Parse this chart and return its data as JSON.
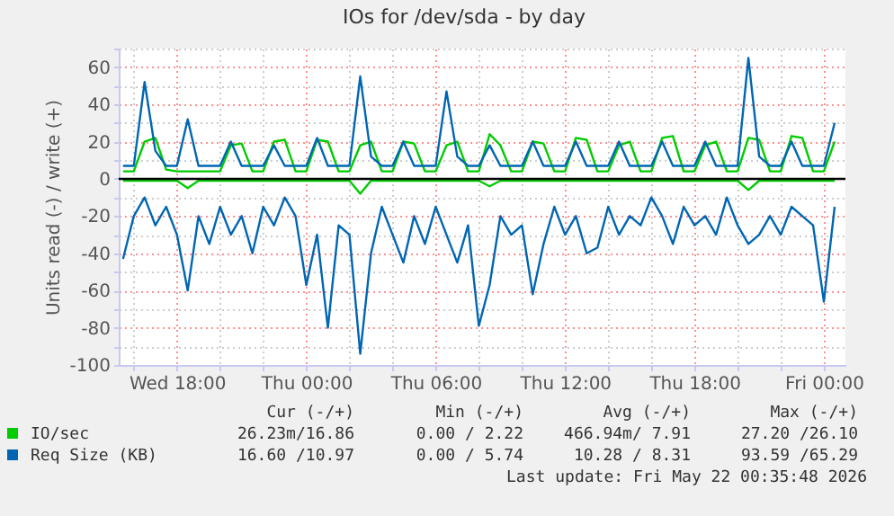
{
  "chart_data": {
    "type": "line",
    "title": "IOs for /dev/sda - by day",
    "ylabel": "Units read (-) / write (+)",
    "x": [
      "2026-05-20T15:30",
      "2026-05-20T16:00",
      "2026-05-20T16:30",
      "2026-05-20T17:00",
      "2026-05-20T17:30",
      "2026-05-20T18:00",
      "2026-05-20T18:30",
      "2026-05-20T19:00",
      "2026-05-20T19:30",
      "2026-05-20T20:00",
      "2026-05-20T20:30",
      "2026-05-20T21:00",
      "2026-05-20T21:30",
      "2026-05-20T22:00",
      "2026-05-20T22:30",
      "2026-05-20T23:00",
      "2026-05-20T23:30",
      "2026-05-21T00:00",
      "2026-05-21T00:30",
      "2026-05-21T01:00",
      "2026-05-21T01:30",
      "2026-05-21T02:00",
      "2026-05-21T02:30",
      "2026-05-21T03:00",
      "2026-05-21T03:30",
      "2026-05-21T04:00",
      "2026-05-21T04:30",
      "2026-05-21T05:00",
      "2026-05-21T05:30",
      "2026-05-21T06:00",
      "2026-05-21T06:30",
      "2026-05-21T07:00",
      "2026-05-21T07:30",
      "2026-05-21T08:00",
      "2026-05-21T08:30",
      "2026-05-21T09:00",
      "2026-05-21T09:30",
      "2026-05-21T10:00",
      "2026-05-21T10:30",
      "2026-05-21T11:00",
      "2026-05-21T11:30",
      "2026-05-21T12:00",
      "2026-05-21T12:30",
      "2026-05-21T13:00",
      "2026-05-21T13:30",
      "2026-05-21T14:00",
      "2026-05-21T14:30",
      "2026-05-21T15:00",
      "2026-05-21T15:30",
      "2026-05-21T16:00",
      "2026-05-21T16:30",
      "2026-05-21T17:00",
      "2026-05-21T17:30",
      "2026-05-21T18:00",
      "2026-05-21T18:30",
      "2026-05-21T19:00",
      "2026-05-21T19:30",
      "2026-05-21T20:00",
      "2026-05-21T20:30",
      "2026-05-21T21:00",
      "2026-05-21T21:30",
      "2026-05-21T22:00",
      "2026-05-21T22:30",
      "2026-05-21T23:00",
      "2026-05-21T23:30",
      "2026-05-22T00:00",
      "2026-05-22T00:30"
    ],
    "series": [
      {
        "color": "#0066b3",
        "values": [
          -43,
          -20,
          -10,
          -25,
          -15,
          -30,
          -60,
          -20,
          -35,
          -15,
          -30,
          -20,
          -40,
          -15,
          -25,
          -10,
          -20,
          -57,
          -30,
          -80,
          -25,
          -30,
          -94,
          -40,
          -15,
          -30,
          -45,
          -20,
          -35,
          -15,
          -30,
          -45,
          -25,
          -79,
          -57,
          -20,
          -30,
          -25,
          -62,
          -35,
          -15,
          -30,
          -20,
          -40,
          -37,
          -15,
          -30,
          -20,
          -25,
          -10,
          -20,
          -35,
          -15,
          -25,
          -20,
          -30,
          -10,
          -25,
          -35,
          -30,
          -20,
          -30,
          -15,
          -20,
          -25,
          -66,
          -15
        ]
      },
      {
        "color": "#00cc00",
        "values": [
          -1,
          -1,
          -1,
          -1,
          -1,
          -1,
          -5,
          -1,
          -1,
          -1,
          -1,
          -1,
          -1,
          -1,
          -1,
          -1,
          -1,
          -1,
          -1,
          -1,
          -1,
          -1,
          -8,
          -1,
          -1,
          -1,
          -1,
          -1,
          -1,
          -1,
          -1,
          -1,
          -1,
          -1,
          -4,
          -1,
          -1,
          -1,
          -1,
          -1,
          -1,
          -1,
          -1,
          -1,
          -1,
          -1,
          -1,
          -1,
          -1,
          -1,
          -1,
          -1,
          -1,
          -1,
          -1,
          -1,
          -1,
          -1,
          -6,
          -1,
          -1,
          -1,
          -1,
          -1,
          -1,
          -1,
          -1
        ]
      },
      {
        "name": "IO/sec",
        "color": "#00cc00",
        "values": [
          4,
          4,
          20,
          22,
          5,
          4,
          4,
          4,
          4,
          4,
          18,
          19,
          4,
          4,
          20,
          21,
          4,
          4,
          21,
          20,
          4,
          4,
          18,
          20,
          4,
          4,
          20,
          19,
          4,
          4,
          18,
          20,
          4,
          4,
          24,
          18,
          4,
          4,
          20,
          19,
          4,
          4,
          22,
          21,
          4,
          4,
          18,
          20,
          4,
          4,
          22,
          23,
          4,
          4,
          18,
          20,
          4,
          4,
          22,
          21,
          4,
          4,
          23,
          22,
          4,
          4,
          20
        ]
      },
      {
        "name": "Req Size (KB)",
        "color": "#0066b3",
        "values": [
          7,
          7,
          52,
          15,
          7,
          7,
          32,
          7,
          7,
          7,
          20,
          7,
          7,
          7,
          18,
          7,
          7,
          7,
          22,
          7,
          7,
          7,
          55,
          12,
          7,
          7,
          20,
          7,
          7,
          7,
          47,
          12,
          7,
          7,
          18,
          7,
          7,
          7,
          20,
          7,
          7,
          7,
          20,
          7,
          7,
          7,
          20,
          7,
          7,
          7,
          20,
          7,
          7,
          7,
          20,
          7,
          7,
          7,
          65,
          12,
          7,
          7,
          20,
          7,
          7,
          7,
          30
        ]
      }
    ],
    "xlim": [
      "2026-05-20T15:18",
      "2026-05-22T01:00"
    ],
    "xticks": [
      {
        "value": "2026-05-20T16:00",
        "label": null
      },
      {
        "value": "2026-05-20T18:00",
        "label": "Wed 18:00"
      },
      {
        "value": "2026-05-20T20:00",
        "label": null
      },
      {
        "value": "2026-05-20T22:00",
        "label": null
      },
      {
        "value": "2026-05-21T00:00",
        "label": "Thu 00:00"
      },
      {
        "value": "2026-05-21T02:00",
        "label": null
      },
      {
        "value": "2026-05-21T04:00",
        "label": null
      },
      {
        "value": "2026-05-21T06:00",
        "label": "Thu 06:00"
      },
      {
        "value": "2026-05-21T08:00",
        "label": null
      },
      {
        "value": "2026-05-21T10:00",
        "label": null
      },
      {
        "value": "2026-05-21T12:00",
        "label": "Thu 12:00"
      },
      {
        "value": "2026-05-21T14:00",
        "label": null
      },
      {
        "value": "2026-05-21T16:00",
        "label": null
      },
      {
        "value": "2026-05-21T18:00",
        "label": "Thu 18:00"
      },
      {
        "value": "2026-05-21T20:00",
        "label": null
      },
      {
        "value": "2026-05-21T22:00",
        "label": null
      },
      {
        "value": "2026-05-22T00:00",
        "label": "Fri 00:00"
      }
    ],
    "ylim": [
      -100,
      70
    ],
    "yticks": [
      -100,
      {
        "value": -90,
        "label": null
      },
      -80,
      {
        "value": -70,
        "label": null
      },
      -60,
      {
        "value": -50,
        "label": null
      },
      -40,
      {
        "value": -30,
        "label": null
      },
      -20,
      {
        "value": -10,
        "label": null
      },
      0,
      {
        "value": 10,
        "label": null
      },
      20,
      {
        "value": 30,
        "label": null
      },
      40,
      {
        "value": 50,
        "label": null
      },
      60,
      {
        "value": 70,
        "label": null
      }
    ],
    "grid": true,
    "legend": "bottom",
    "marker": "none",
    "line_style": "solid",
    "ref_lines": [
      {
        "axis": "y",
        "value": 0,
        "color": "#000000"
      }
    ],
    "annotations": [
      "Cur (-/+)",
      "Min (-/+)",
      "Avg (-/+)",
      "Max (-/+)",
      "26.23m/16.86",
      "0.00 / 2.22",
      "466.94m/ 7.91",
      "27.20 /26.10",
      "16.60 /10.97",
      "0.00 / 5.74",
      "10.28 / 8.31",
      "93.59 /65.29",
      "Last update: Fri May 22 00:35:48 2026"
    ]
  }
}
